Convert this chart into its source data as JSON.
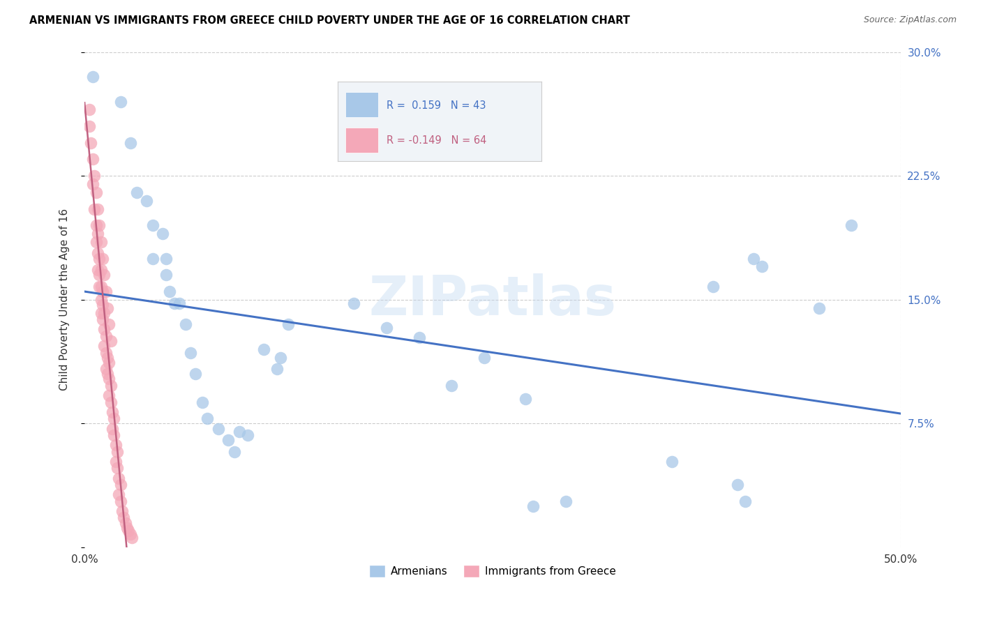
{
  "title": "ARMENIAN VS IMMIGRANTS FROM GREECE CHILD POVERTY UNDER THE AGE OF 16 CORRELATION CHART",
  "source": "Source: ZipAtlas.com",
  "ylabel": "Child Poverty Under the Age of 16",
  "xlim": [
    0,
    0.5
  ],
  "ylim": [
    0,
    0.3
  ],
  "yticks": [
    0.0,
    0.075,
    0.15,
    0.225,
    0.3
  ],
  "ytick_labels": [
    "",
    "7.5%",
    "15.0%",
    "22.5%",
    "30.0%"
  ],
  "xticks": [
    0.0,
    0.1,
    0.2,
    0.3,
    0.4,
    0.5
  ],
  "xtick_labels": [
    "0.0%",
    "",
    "",
    "",
    "",
    "50.0%"
  ],
  "r_armenian": 0.159,
  "n_armenian": 43,
  "r_greece": -0.149,
  "n_greece": 64,
  "armenian_color": "#a8c8e8",
  "greece_color": "#f4a8b8",
  "armenian_line_color": "#4472c4",
  "greece_line_color": "#c06080",
  "watermark": "ZIPatlas",
  "armenian_points": [
    [
      0.005,
      0.285
    ],
    [
      0.022,
      0.27
    ],
    [
      0.028,
      0.245
    ],
    [
      0.032,
      0.215
    ],
    [
      0.038,
      0.21
    ],
    [
      0.042,
      0.195
    ],
    [
      0.042,
      0.175
    ],
    [
      0.048,
      0.19
    ],
    [
      0.05,
      0.175
    ],
    [
      0.05,
      0.165
    ],
    [
      0.052,
      0.155
    ],
    [
      0.055,
      0.148
    ],
    [
      0.058,
      0.148
    ],
    [
      0.062,
      0.135
    ],
    [
      0.065,
      0.118
    ],
    [
      0.068,
      0.105
    ],
    [
      0.072,
      0.088
    ],
    [
      0.075,
      0.078
    ],
    [
      0.082,
      0.072
    ],
    [
      0.088,
      0.065
    ],
    [
      0.092,
      0.058
    ],
    [
      0.095,
      0.07
    ],
    [
      0.1,
      0.068
    ],
    [
      0.11,
      0.12
    ],
    [
      0.118,
      0.108
    ],
    [
      0.12,
      0.115
    ],
    [
      0.125,
      0.135
    ],
    [
      0.165,
      0.148
    ],
    [
      0.185,
      0.133
    ],
    [
      0.205,
      0.127
    ],
    [
      0.225,
      0.098
    ],
    [
      0.245,
      0.115
    ],
    [
      0.27,
      0.09
    ],
    [
      0.275,
      0.025
    ],
    [
      0.295,
      0.028
    ],
    [
      0.36,
      0.052
    ],
    [
      0.385,
      0.158
    ],
    [
      0.4,
      0.038
    ],
    [
      0.405,
      0.028
    ],
    [
      0.41,
      0.175
    ],
    [
      0.415,
      0.17
    ],
    [
      0.45,
      0.145
    ],
    [
      0.47,
      0.195
    ]
  ],
  "greece_points": [
    [
      0.003,
      0.265
    ],
    [
      0.005,
      0.22
    ],
    [
      0.006,
      0.205
    ],
    [
      0.007,
      0.195
    ],
    [
      0.007,
      0.185
    ],
    [
      0.008,
      0.19
    ],
    [
      0.008,
      0.178
    ],
    [
      0.008,
      0.168
    ],
    [
      0.009,
      0.175
    ],
    [
      0.009,
      0.165
    ],
    [
      0.009,
      0.158
    ],
    [
      0.01,
      0.168
    ],
    [
      0.01,
      0.158
    ],
    [
      0.01,
      0.15
    ],
    [
      0.01,
      0.142
    ],
    [
      0.011,
      0.155
    ],
    [
      0.011,
      0.147
    ],
    [
      0.011,
      0.138
    ],
    [
      0.012,
      0.142
    ],
    [
      0.012,
      0.132
    ],
    [
      0.012,
      0.122
    ],
    [
      0.013,
      0.128
    ],
    [
      0.013,
      0.118
    ],
    [
      0.013,
      0.108
    ],
    [
      0.014,
      0.115
    ],
    [
      0.014,
      0.105
    ],
    [
      0.015,
      0.112
    ],
    [
      0.015,
      0.102
    ],
    [
      0.015,
      0.092
    ],
    [
      0.016,
      0.098
    ],
    [
      0.016,
      0.088
    ],
    [
      0.017,
      0.082
    ],
    [
      0.017,
      0.072
    ],
    [
      0.018,
      0.078
    ],
    [
      0.018,
      0.068
    ],
    [
      0.019,
      0.062
    ],
    [
      0.019,
      0.052
    ],
    [
      0.02,
      0.058
    ],
    [
      0.02,
      0.048
    ],
    [
      0.021,
      0.042
    ],
    [
      0.021,
      0.032
    ],
    [
      0.022,
      0.038
    ],
    [
      0.022,
      0.028
    ],
    [
      0.023,
      0.022
    ],
    [
      0.024,
      0.018
    ],
    [
      0.025,
      0.015
    ],
    [
      0.026,
      0.012
    ],
    [
      0.027,
      0.01
    ],
    [
      0.028,
      0.008
    ],
    [
      0.029,
      0.006
    ],
    [
      0.003,
      0.255
    ],
    [
      0.004,
      0.245
    ],
    [
      0.005,
      0.235
    ],
    [
      0.006,
      0.225
    ],
    [
      0.007,
      0.215
    ],
    [
      0.008,
      0.205
    ],
    [
      0.009,
      0.195
    ],
    [
      0.01,
      0.185
    ],
    [
      0.011,
      0.175
    ],
    [
      0.012,
      0.165
    ],
    [
      0.013,
      0.155
    ],
    [
      0.014,
      0.145
    ],
    [
      0.015,
      0.135
    ],
    [
      0.016,
      0.125
    ]
  ]
}
